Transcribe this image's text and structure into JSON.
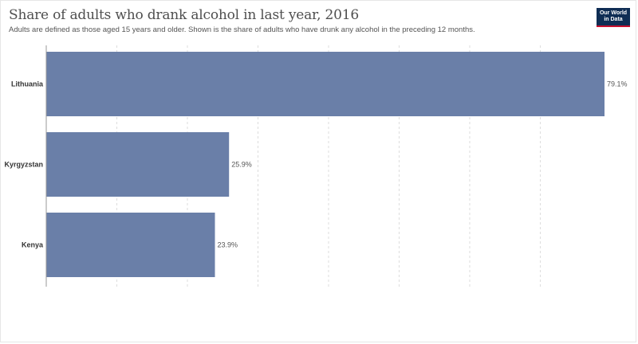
{
  "header": {
    "title": "Share of adults who drank alcohol in last year, 2016",
    "subtitle": "Adults are defined as those aged 15 years and older. Shown is the share of adults who have drunk any alcohol in the preceding 12 months.",
    "logo_line1": "Our World",
    "logo_line2": "in Data"
  },
  "colors": {
    "bar": "#6a7fa8",
    "grid": "#dddddd",
    "axis": "#999999",
    "logo_bg": "#0f2d54",
    "logo_accent": "#c8102e"
  },
  "chart_data": {
    "type": "bar",
    "orientation": "horizontal",
    "title": "Share of adults who drank alcohol in last year, 2016",
    "categories": [
      "Lithuania",
      "Kyrgyzstan",
      "Kenya"
    ],
    "values": [
      79.1,
      25.9,
      23.9
    ],
    "value_labels": [
      "79.1%",
      "25.9%",
      "23.9%"
    ],
    "unit": "%",
    "xlim": [
      0,
      79.1
    ],
    "gridlines": [
      0,
      10,
      20,
      30,
      40,
      50,
      60,
      70
    ],
    "grid": true,
    "legend": "none"
  }
}
